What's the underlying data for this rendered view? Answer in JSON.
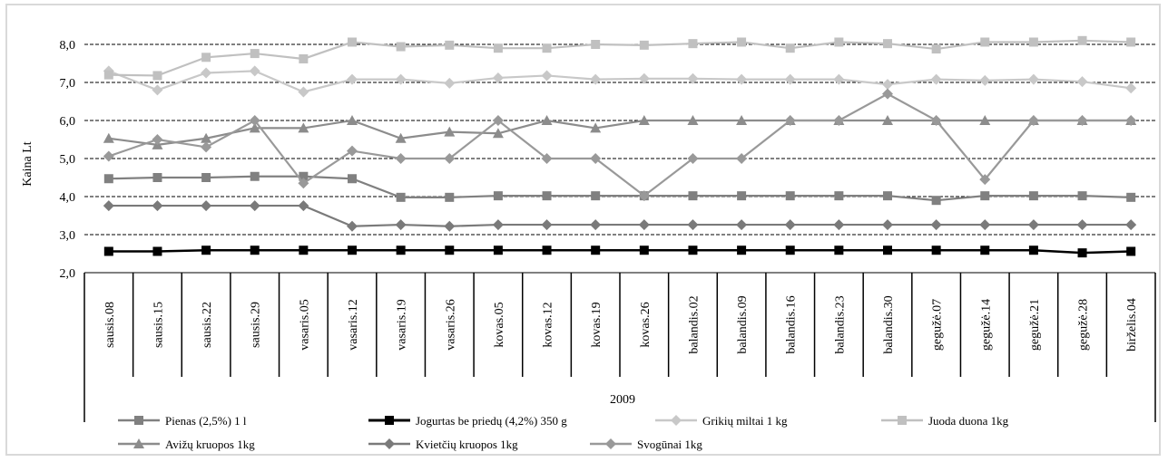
{
  "chart_data": {
    "type": "line",
    "ylabel": "Kaina Lt",
    "xlabel": "2009",
    "ylim": [
      2.0,
      8.0
    ],
    "y_ticks": [
      "2,0",
      "3,0",
      "4,0",
      "5,0",
      "6,0",
      "7,0",
      "8,0"
    ],
    "grid": "horizontal dashed",
    "legend_position": "bottom",
    "categories": [
      "sausis.08",
      "sausis.15",
      "sausis.22",
      "sausis.29",
      "vasaris.05",
      "vasaris.12",
      "vasaris.19",
      "vasaris.26",
      "kovas.05",
      "kovas.12",
      "kovas.19",
      "kovas.26",
      "balandis.02",
      "balandis.09",
      "balandis.16",
      "balandis.23",
      "balandis.30",
      "gegužė.07",
      "gegužė.14",
      "gegužė.21",
      "gegužė.28",
      "birželis.04"
    ],
    "series": [
      {
        "name": "Pienas (2,5%) 1 l",
        "color": "#808080",
        "marker": "square",
        "values": [
          4.47,
          4.5,
          4.5,
          4.53,
          4.53,
          4.47,
          3.98,
          3.98,
          4.02,
          4.02,
          4.02,
          4.02,
          4.02,
          4.02,
          4.02,
          4.02,
          4.02,
          3.9,
          4.02,
          4.02,
          4.02,
          3.98
        ]
      },
      {
        "name": "Jogurtas be priedų (4,2%) 350 g",
        "color": "#000000",
        "marker": "square",
        "values": [
          2.56,
          2.56,
          2.59,
          2.59,
          2.59,
          2.59,
          2.59,
          2.59,
          2.59,
          2.59,
          2.59,
          2.59,
          2.59,
          2.59,
          2.59,
          2.59,
          2.59,
          2.59,
          2.59,
          2.59,
          2.52,
          2.56
        ]
      },
      {
        "name": "Grikių miltai  1 kg",
        "color": "#c8c8c8",
        "marker": "diamond",
        "values": [
          7.3,
          6.8,
          7.25,
          7.3,
          6.75,
          7.08,
          7.08,
          6.98,
          7.12,
          7.18,
          7.08,
          7.1,
          7.1,
          7.08,
          7.08,
          7.08,
          6.95,
          7.08,
          7.05,
          7.08,
          7.02,
          6.85
        ]
      },
      {
        "name": "Juoda duona 1kg",
        "color": "#c0c0c0",
        "marker": "square",
        "values": [
          7.2,
          7.18,
          7.66,
          7.76,
          7.62,
          8.06,
          7.94,
          7.98,
          7.9,
          7.9,
          8.0,
          7.98,
          8.02,
          8.06,
          7.9,
          8.06,
          8.02,
          7.88,
          8.06,
          8.06,
          8.1,
          8.06
        ]
      },
      {
        "name": "Avižų kruopos 1kg",
        "color": "#8c8c8c",
        "marker": "triangle",
        "values": [
          5.53,
          5.36,
          5.53,
          5.8,
          5.8,
          6.0,
          5.53,
          5.7,
          5.66,
          6.0,
          5.8,
          6.0,
          6.0,
          6.0,
          6.0,
          6.0,
          6.0,
          6.0,
          6.0,
          6.0,
          6.0,
          6.0
        ]
      },
      {
        "name": "Kvietčių kruopos 1kg",
        "color": "#7a7a7a",
        "marker": "diamond",
        "values": [
          3.76,
          3.76,
          3.76,
          3.76,
          3.76,
          3.22,
          3.26,
          3.22,
          3.26,
          3.26,
          3.26,
          3.26,
          3.26,
          3.26,
          3.26,
          3.26,
          3.26,
          3.26,
          3.26,
          3.26,
          3.26,
          3.26
        ]
      },
      {
        "name": "Svogūnai 1kg",
        "color": "#999999",
        "marker": "diamond",
        "values": [
          5.06,
          5.5,
          5.3,
          6.0,
          4.35,
          5.2,
          5.0,
          5.0,
          6.0,
          5.0,
          5.0,
          4.02,
          5.0,
          5.0,
          6.0,
          6.0,
          6.7,
          6.0,
          4.45,
          6.0,
          6.0,
          6.0
        ]
      }
    ]
  }
}
